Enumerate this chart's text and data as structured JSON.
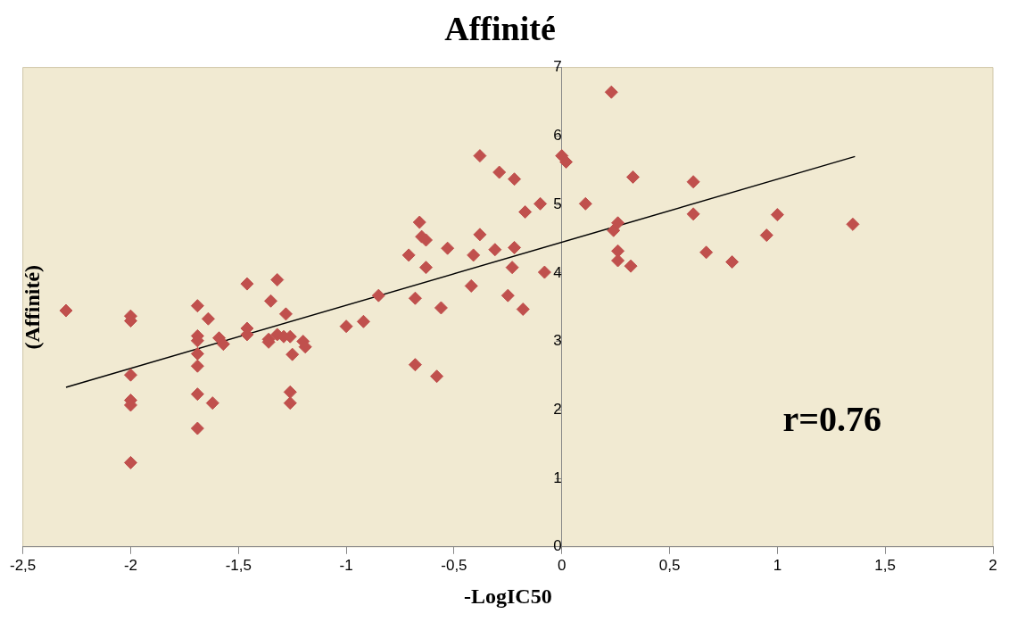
{
  "chart_data": {
    "type": "scatter",
    "title": "Affinité",
    "xlabel": "-LogIC50",
    "ylabel": "(Affinité)",
    "xlim": [
      -2.5,
      2
    ],
    "xticks": [
      {
        "value": -2.5,
        "label": "-2,5"
      },
      -2,
      {
        "value": -1.5,
        "label": "-1,5"
      },
      -1,
      {
        "value": -0.5,
        "label": "-0,5"
      },
      0,
      {
        "value": 0.5,
        "label": "0,5"
      },
      1,
      {
        "value": 1.5,
        "label": "1,5"
      },
      2
    ],
    "ylim": [
      0,
      7
    ],
    "yticks": [
      0,
      1,
      2,
      3,
      4,
      5,
      6,
      7
    ],
    "grid": false,
    "legend": false,
    "annotations": [
      "r=0.76"
    ],
    "series": [
      {
        "type": "scatter",
        "marker": "diamond",
        "color": "#c0504d",
        "x": [
          -2.3,
          -2.0,
          -2.0,
          -2.0,
          -2.0,
          -2.0,
          -2.0,
          -1.69,
          -1.69,
          -1.69,
          -1.69,
          -1.69,
          -1.69,
          -1.69,
          -1.64,
          -1.62,
          -1.59,
          -1.57,
          -1.46,
          -1.46,
          -1.46,
          -1.36,
          -1.36,
          -1.35,
          -1.32,
          -1.32,
          -1.29,
          -1.28,
          -1.26,
          -1.25,
          -1.26,
          -1.26,
          -1.2,
          -1.19,
          -1.0,
          -0.92,
          -0.85,
          -0.71,
          -0.68,
          -0.68,
          -0.66,
          -0.65,
          -0.63,
          -0.63,
          -0.58,
          -0.56,
          -0.53,
          -0.42,
          -0.41,
          -0.38,
          -0.38,
          -0.31,
          -0.29,
          -0.25,
          -0.23,
          -0.22,
          -0.22,
          -0.18,
          -0.17,
          -0.1,
          -0.08,
          0.0,
          0.02,
          0.11,
          0.23,
          0.24,
          0.26,
          0.26,
          0.26,
          0.32,
          0.33,
          0.61,
          0.61,
          0.67,
          0.79,
          0.95,
          1.0,
          1.35
        ],
        "values": [
          3.45,
          3.37,
          3.3,
          2.51,
          2.14,
          2.07,
          1.23,
          3.52,
          3.08,
          3.01,
          2.82,
          2.64,
          2.23,
          1.73,
          3.33,
          2.1,
          3.05,
          2.96,
          3.84,
          3.19,
          3.1,
          3.03,
          2.99,
          3.59,
          3.9,
          3.1,
          3.07,
          3.4,
          3.07,
          2.81,
          2.26,
          2.1,
          3.0,
          2.92,
          3.22,
          3.29,
          3.67,
          4.26,
          2.66,
          3.63,
          4.74,
          4.53,
          4.48,
          4.08,
          2.49,
          3.49,
          4.36,
          3.81,
          4.26,
          5.71,
          4.56,
          4.34,
          5.47,
          3.67,
          4.08,
          4.37,
          5.37,
          3.47,
          4.89,
          5.01,
          4.01,
          5.71,
          5.62,
          5.01,
          6.64,
          4.62,
          4.73,
          4.32,
          4.18,
          4.1,
          5.4,
          5.33,
          4.86,
          4.3,
          4.16,
          4.55,
          4.85,
          4.71
        ]
      },
      {
        "type": "line",
        "color": "#000000",
        "x": [
          -2.3,
          1.36
        ],
        "values": [
          2.33,
          5.7
        ]
      }
    ]
  }
}
